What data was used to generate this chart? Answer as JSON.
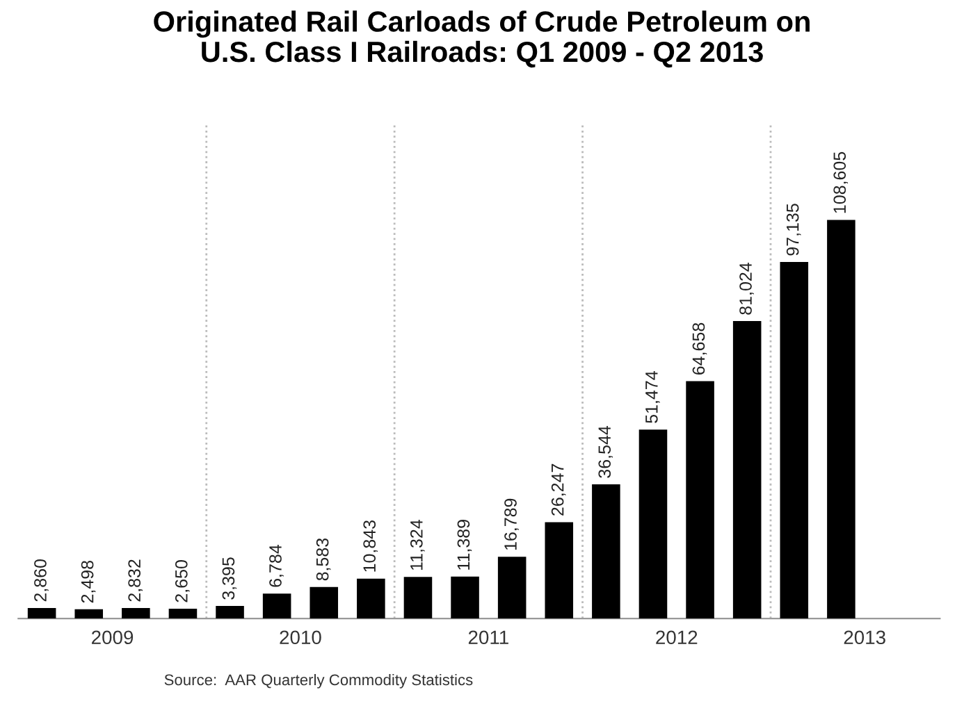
{
  "chart_data": {
    "type": "bar",
    "title": "Originated Rail Carloads of Crude Petroleum on\nU.S. Class I Railroads: Q1 2009 - Q2 2013",
    "x": [
      2009.125,
      2009.375,
      2009.625,
      2009.875,
      2010.125,
      2010.375,
      2010.625,
      2010.875,
      2011.125,
      2011.375,
      2011.625,
      2011.875,
      2012.125,
      2012.375,
      2012.625,
      2012.875,
      2013.125,
      2013.375
    ],
    "values": [
      2860,
      2498,
      2832,
      2650,
      3395,
      6784,
      8583,
      10843,
      11324,
      11389,
      16789,
      26247,
      36544,
      51474,
      64658,
      81024,
      97135,
      108605
    ],
    "color": "#000000",
    "value_labels": [
      "2,860",
      "2,498",
      "2,832",
      "2,650",
      "3,395",
      "6,784",
      "8,583",
      "10,843",
      "11,324",
      "11,389",
      "16,789",
      "26,247",
      "36,544",
      "51,474",
      "64,658",
      "81,024",
      "97,135",
      "108,605"
    ],
    "xlim": [
      2009,
      2013.9
    ],
    "xticks": [
      {
        "value": 2009.5,
        "label": "2009"
      },
      {
        "value": 2010.5,
        "label": "2010"
      },
      {
        "value": 2011.5,
        "label": "2011"
      },
      {
        "value": 2012.5,
        "label": "2012"
      },
      {
        "value": 2013.5,
        "label": "2013"
      }
    ],
    "ref_lines": [
      {
        "axis": "x",
        "value": 2010,
        "color": "#bbbbbb",
        "line_style": "dotted"
      },
      {
        "axis": "x",
        "value": 2011,
        "color": "#bbbbbb",
        "line_style": "dotted"
      },
      {
        "axis": "x",
        "value": 2012,
        "color": "#bbbbbb",
        "line_style": "dotted"
      },
      {
        "axis": "x",
        "value": 2013,
        "color": "#bbbbbb",
        "line_style": "dotted"
      }
    ],
    "grid": false,
    "legend": false,
    "annotations": [
      "Source:  AAR Quarterly Commodity Statistics"
    ]
  }
}
